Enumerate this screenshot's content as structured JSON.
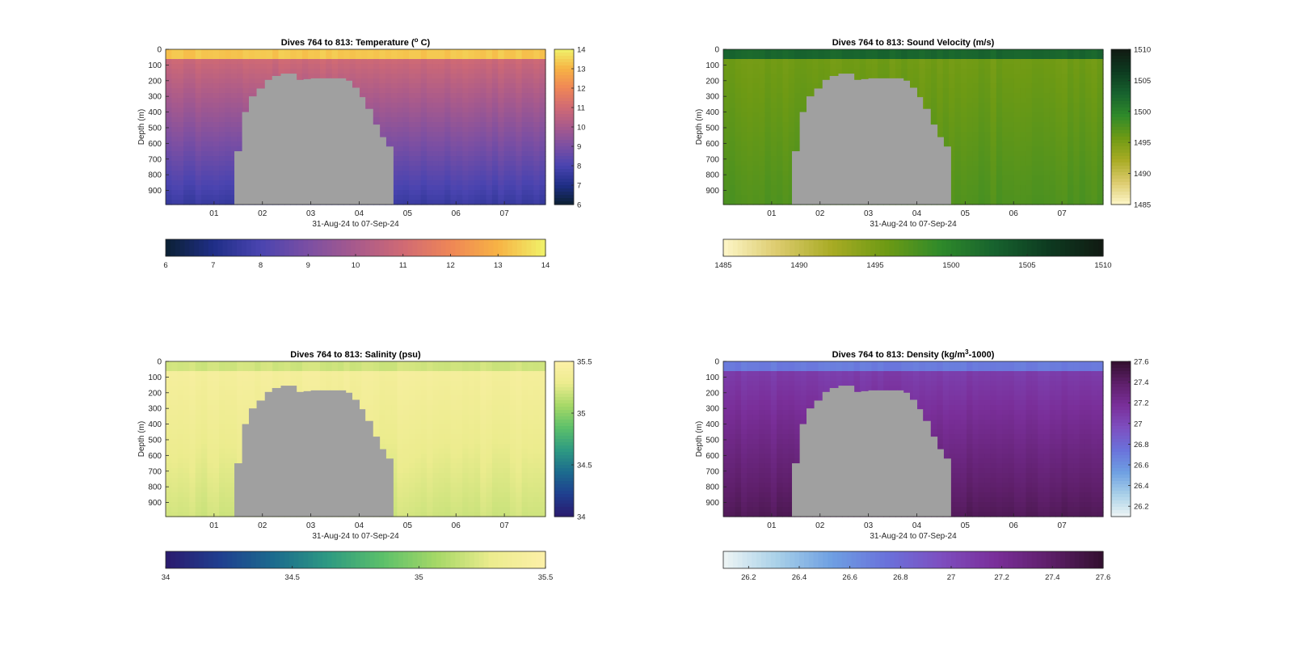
{
  "chart_data": [
    {
      "type": "heatmap",
      "title": "Dives 764 to 813: Temperature (°C)",
      "title_parts": [
        "Dives 764 to 813: Temperature (",
        "o",
        " C)"
      ],
      "xlabel": "31-Aug-24 to 07-Sep-24",
      "ylabel": "Depth (m)",
      "xlim": [
        0,
        7.85
      ],
      "ylim": [
        0,
        990
      ],
      "x_ticks": [
        1,
        2,
        3,
        4,
        5,
        6,
        7
      ],
      "x_tick_labels": [
        "01",
        "02",
        "03",
        "04",
        "05",
        "06",
        "07"
      ],
      "y_ticks": [
        0,
        100,
        200,
        300,
        400,
        500,
        600,
        700,
        800,
        900
      ],
      "y_tick_labels": [
        "0",
        "100",
        "200",
        "300",
        "400",
        "500",
        "600",
        "700",
        "800",
        "900"
      ],
      "colorbar_range": [
        6,
        14
      ],
      "colorbar_ticks": [
        "6",
        "7",
        "8",
        "9",
        "10",
        "11",
        "12",
        "13",
        "14"
      ],
      "colorbar_ticks_h": [
        "6",
        "7",
        "8",
        "9",
        "10",
        "11",
        "12",
        "13",
        "14"
      ],
      "colormap": [
        "#0b2033",
        "#1f2e87",
        "#4a44b0",
        "#7b4fa3",
        "#a85a8c",
        "#d06a74",
        "#ef8656",
        "#f7b344",
        "#f0f26a"
      ],
      "profile": {
        "surface": 13.3,
        "mix_depth": 70,
        "top": 10.9,
        "bottom": 7.6
      },
      "no_data_color": "#a0a0a0",
      "gap_x": [
        1.42,
        1.58,
        1.72,
        1.88,
        2.05,
        2.2,
        2.38,
        2.62,
        2.7,
        2.85,
        3.0,
        3.2,
        3.4,
        3.6,
        3.72,
        3.85,
        4.0,
        4.12,
        4.28,
        4.42,
        4.55,
        4.7
      ],
      "gap_top": [
        650,
        400,
        300,
        250,
        195,
        170,
        155,
        155,
        195,
        190,
        185,
        185,
        185,
        185,
        200,
        245,
        305,
        380,
        480,
        560,
        620
      ]
    },
    {
      "type": "heatmap",
      "title": "Dives 764 to 813: Sound Velocity (m/s)",
      "xlabel": "31-Aug-24 to 07-Sep-24",
      "ylabel": "Depth (m)",
      "xlim": [
        0,
        7.85
      ],
      "ylim": [
        0,
        990
      ],
      "x_ticks": [
        1,
        2,
        3,
        4,
        5,
        6,
        7
      ],
      "x_tick_labels": [
        "01",
        "02",
        "03",
        "04",
        "05",
        "06",
        "07"
      ],
      "y_ticks": [
        0,
        100,
        200,
        300,
        400,
        500,
        600,
        700,
        800,
        900
      ],
      "y_tick_labels": [
        "0",
        "100",
        "200",
        "300",
        "400",
        "500",
        "600",
        "700",
        "800",
        "900"
      ],
      "colorbar_range": [
        1485,
        1510
      ],
      "colorbar_ticks": [
        "1485",
        "1490",
        "1495",
        "1500",
        "1505",
        "1510"
      ],
      "colorbar_ticks_h": [
        "1485",
        "1490",
        "1495",
        "1500",
        "1505",
        "1510"
      ],
      "colormap": [
        "#fdf6c8",
        "#dccb6d",
        "#a8ab24",
        "#6e9a14",
        "#2f8a2a",
        "#17622e",
        "#0d3a20",
        "#111a12"
      ],
      "profile": {
        "surface": 1502.5,
        "mix_depth": 70,
        "top": 1495.5,
        "bottom": 1497.5
      },
      "no_data_color": "#a0a0a0",
      "gap_x": [
        1.42,
        1.58,
        1.72,
        1.88,
        2.05,
        2.2,
        2.38,
        2.62,
        2.7,
        2.85,
        3.0,
        3.2,
        3.4,
        3.6,
        3.72,
        3.85,
        4.0,
        4.12,
        4.28,
        4.42,
        4.55,
        4.7
      ],
      "gap_top": [
        650,
        400,
        300,
        250,
        195,
        170,
        155,
        155,
        195,
        190,
        185,
        185,
        185,
        185,
        200,
        245,
        305,
        380,
        480,
        560,
        620
      ]
    },
    {
      "type": "heatmap",
      "title": "Dives 764 to 813: Salinity (psu)",
      "xlabel": "31-Aug-24 to 07-Sep-24",
      "ylabel": "Depth (m)",
      "xlim": [
        0,
        7.85
      ],
      "ylim": [
        0,
        990
      ],
      "x_ticks": [
        1,
        2,
        3,
        4,
        5,
        6,
        7
      ],
      "x_tick_labels": [
        "01",
        "02",
        "03",
        "04",
        "05",
        "06",
        "07"
      ],
      "y_ticks": [
        0,
        100,
        200,
        300,
        400,
        500,
        600,
        700,
        800,
        900
      ],
      "y_tick_labels": [
        "0",
        "100",
        "200",
        "300",
        "400",
        "500",
        "600",
        "700",
        "800",
        "900"
      ],
      "colorbar_range": [
        34,
        35.5
      ],
      "colorbar_ticks": [
        "34",
        "34.5",
        "35",
        "35.5"
      ],
      "colorbar_ticks_h": [
        "34",
        "34.5",
        "35",
        "35.5"
      ],
      "colormap": [
        "#2a1a6e",
        "#1f3f8f",
        "#1c6b8e",
        "#2e9a82",
        "#5cc06a",
        "#a6d867",
        "#ecec8e",
        "#fcf0a8"
      ],
      "profile": {
        "surface": 35.2,
        "mix_depth": 70,
        "top": 35.4,
        "bottom": 35.2
      },
      "no_data_color": "#a0a0a0",
      "gap_x": [
        1.42,
        1.58,
        1.72,
        1.88,
        2.05,
        2.2,
        2.38,
        2.62,
        2.7,
        2.85,
        3.0,
        3.2,
        3.4,
        3.6,
        3.72,
        3.85,
        4.0,
        4.12,
        4.28,
        4.42,
        4.55,
        4.7
      ],
      "gap_top": [
        650,
        400,
        300,
        250,
        195,
        170,
        155,
        155,
        195,
        190,
        185,
        185,
        185,
        185,
        200,
        245,
        305,
        380,
        480,
        560,
        620
      ]
    },
    {
      "type": "heatmap",
      "title": "Dives 764 to 813: Density (kg/m³-1000)",
      "title_parts": [
        "Dives 764 to 813: Density (kg/m",
        "3",
        "-1000)"
      ],
      "xlabel": "31-Aug-24 to 07-Sep-24",
      "ylabel": "Depth (m)",
      "xlim": [
        0,
        7.85
      ],
      "ylim": [
        0,
        990
      ],
      "x_ticks": [
        1,
        2,
        3,
        4,
        5,
        6,
        7
      ],
      "x_tick_labels": [
        "01",
        "02",
        "03",
        "04",
        "05",
        "06",
        "07"
      ],
      "y_ticks": [
        0,
        100,
        200,
        300,
        400,
        500,
        600,
        700,
        800,
        900
      ],
      "y_tick_labels": [
        "0",
        "100",
        "200",
        "300",
        "400",
        "500",
        "600",
        "700",
        "800",
        "900"
      ],
      "colorbar_range": [
        26.1,
        27.6
      ],
      "colorbar_ticks": [
        "26.2",
        "26.4",
        "26.6",
        "26.8",
        "27",
        "27.2",
        "27.4",
        "27.6"
      ],
      "colorbar_ticks_h": [
        "26.2",
        "26.4",
        "26.6",
        "26.8",
        "27",
        "27.2",
        "27.4",
        "27.6"
      ],
      "colorbar_tick_values": [
        26.2,
        26.4,
        26.6,
        26.8,
        27.0,
        27.2,
        27.4,
        27.6
      ],
      "colormap": [
        "#eef5f5",
        "#a8d0e8",
        "#6e9fe2",
        "#6a72db",
        "#7d4fc0",
        "#7a2f9a",
        "#5e1f6a",
        "#320f2e"
      ],
      "profile": {
        "surface": 26.7,
        "mix_depth": 70,
        "top": 27.08,
        "bottom": 27.45
      },
      "no_data_color": "#a0a0a0",
      "gap_x": [
        1.42,
        1.58,
        1.72,
        1.88,
        2.05,
        2.2,
        2.38,
        2.62,
        2.7,
        2.85,
        3.0,
        3.2,
        3.4,
        3.6,
        3.72,
        3.85,
        4.0,
        4.12,
        4.28,
        4.42,
        4.55,
        4.7
      ],
      "gap_top": [
        650,
        400,
        300,
        250,
        195,
        170,
        155,
        155,
        195,
        190,
        185,
        185,
        185,
        185,
        200,
        245,
        305,
        380,
        480,
        560,
        620
      ]
    }
  ]
}
